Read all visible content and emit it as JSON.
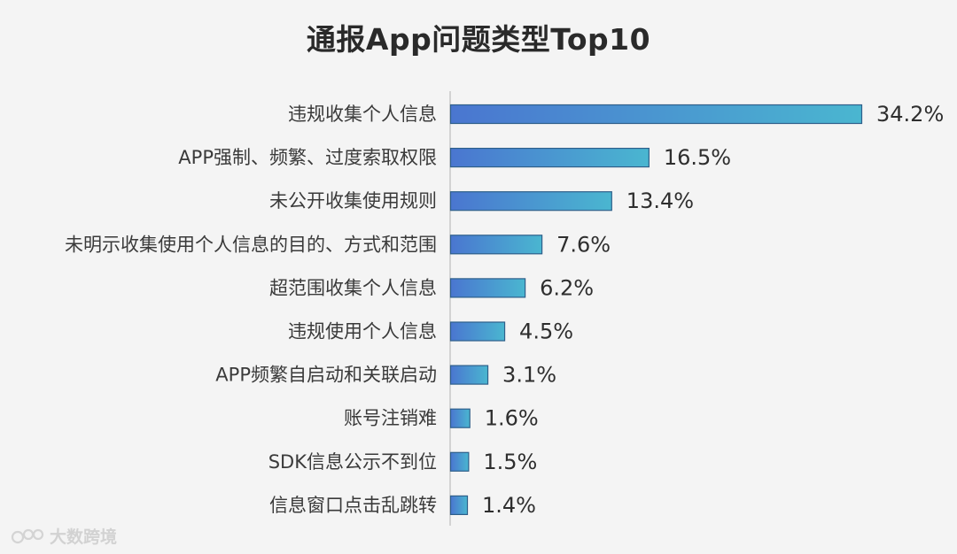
{
  "chart_data": {
    "type": "bar",
    "orientation": "horizontal",
    "title": "通报App问题类型Top10",
    "xlabel": "",
    "ylabel": "",
    "grid": false,
    "categories": [
      "违规收集个人信息",
      "APP强制、频繁、过度索取权限",
      "未公开收集使用规则",
      "未明示收集使用个人信息的目的、方式和范围",
      "超范围收集个人信息",
      "违规使用个人信息",
      "APP频繁自启动和关联启动",
      "账号注销难",
      "SDK信息公示不到位",
      "信息窗口点击乱跳转"
    ],
    "values": [
      34.2,
      16.5,
      13.4,
      7.6,
      6.2,
      4.5,
      3.1,
      1.6,
      1.5,
      1.4
    ],
    "value_labels": [
      "34.2%",
      "16.5%",
      "13.4%",
      "7.6%",
      "6.2%",
      "4.5%",
      "3.1%",
      "1.6%",
      "1.5%",
      "1.4%"
    ],
    "xlim": [
      0,
      34.2
    ],
    "colors": {
      "bar_gradient_start": "#4a76d0",
      "bar_gradient_end": "#4ab6d0",
      "bar_stroke": "#2e5f8a",
      "axis": "#c8c8c8"
    }
  },
  "watermark": {
    "text": "大数跨境",
    "icon": "brand-logo-icon"
  }
}
